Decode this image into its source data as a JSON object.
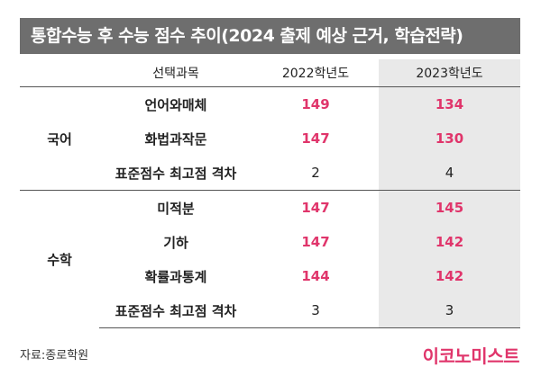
{
  "header": {
    "title": "통합수능 후 수능 점수 추이(2024 출제 예상 근거, 학습전략)"
  },
  "table": {
    "columns": [
      "선택과목",
      "2022학년도",
      "2023학년도"
    ],
    "groups": [
      {
        "name": "국어",
        "rows": [
          {
            "subject": "언어와매체",
            "y2022": "149",
            "y2023": "134",
            "highlight": true
          },
          {
            "subject": "화법과작문",
            "y2022": "147",
            "y2023": "130",
            "highlight": true
          },
          {
            "subject": "표준점수 최고점 격차",
            "y2022": "2",
            "y2023": "4",
            "highlight": false
          }
        ]
      },
      {
        "name": "수학",
        "rows": [
          {
            "subject": "미적분",
            "y2022": "147",
            "y2023": "145",
            "highlight": true
          },
          {
            "subject": "기하",
            "y2022": "147",
            "y2023": "142",
            "highlight": true
          },
          {
            "subject": "확률과통계",
            "y2022": "144",
            "y2023": "142",
            "highlight": true
          },
          {
            "subject": "표준점수 최고점 격차",
            "y2022": "3",
            "y2023": "3",
            "highlight": false
          }
        ]
      }
    ]
  },
  "footer": {
    "source": "자료:종로학원",
    "logo": "이코노미스트"
  },
  "colors": {
    "accent": "#e0356b",
    "title_bg": "#6e6e6e",
    "shade": "#e9e9e9"
  }
}
